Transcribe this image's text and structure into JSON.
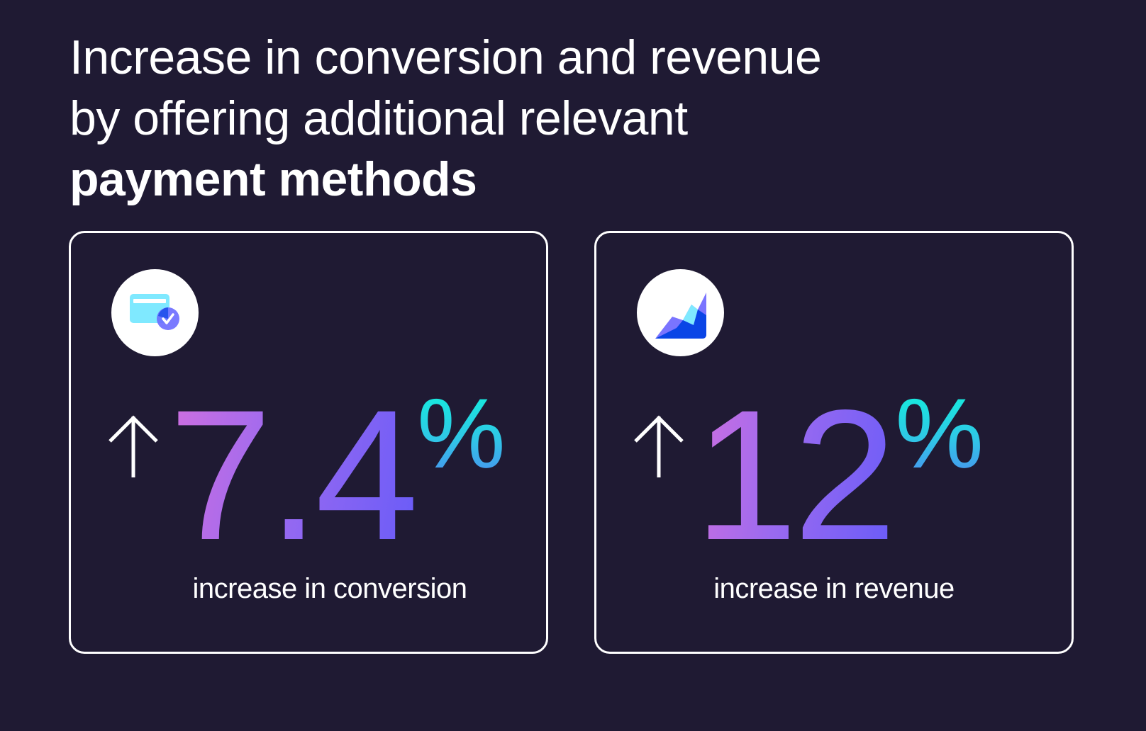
{
  "headline": {
    "line1": "Increase in conversion and revenue",
    "line2": "by offering additional relevant",
    "line3_bold": "payment methods"
  },
  "cards": [
    {
      "icon": "credit-card-check-icon",
      "arrow": "arrow-up-icon",
      "value": "7.4",
      "unit": "%",
      "label": "increase in conversion"
    },
    {
      "icon": "area-chart-icon",
      "arrow": "arrow-up-icon",
      "value": "12",
      "unit": "%",
      "label": "increase in revenue"
    }
  ],
  "colors": {
    "background": "#1f1a33",
    "gradient_start": "#cf6fe0",
    "gradient_end": "#6a5cf8",
    "percent_top": "#12f0dc",
    "percent_bottom": "#4a8ff0"
  }
}
